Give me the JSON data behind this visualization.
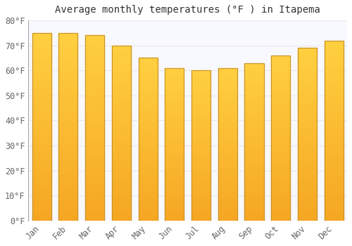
{
  "title": "Average monthly temperatures (°F ) in Itapema",
  "months": [
    "Jan",
    "Feb",
    "Mar",
    "Apr",
    "May",
    "Jun",
    "Jul",
    "Aug",
    "Sep",
    "Oct",
    "Nov",
    "Dec"
  ],
  "values": [
    75,
    75,
    74,
    70,
    65,
    61,
    60,
    61,
    63,
    66,
    69,
    72
  ],
  "bar_color_top": "#FFC31A",
  "bar_color_bottom": "#F5A623",
  "bar_edge_color": "#C8922A",
  "ylim": [
    0,
    80
  ],
  "yticks": [
    0,
    10,
    20,
    30,
    40,
    50,
    60,
    70,
    80
  ],
  "ytick_labels": [
    "0°F",
    "10°F",
    "20°F",
    "30°F",
    "40°F",
    "50°F",
    "60°F",
    "70°F",
    "80°F"
  ],
  "background_color": "#FFFFFF",
  "plot_bg_color": "#F8F8FF",
  "grid_color": "#E8E8E8",
  "title_fontsize": 10,
  "tick_fontsize": 8.5,
  "tick_color": "#666666"
}
